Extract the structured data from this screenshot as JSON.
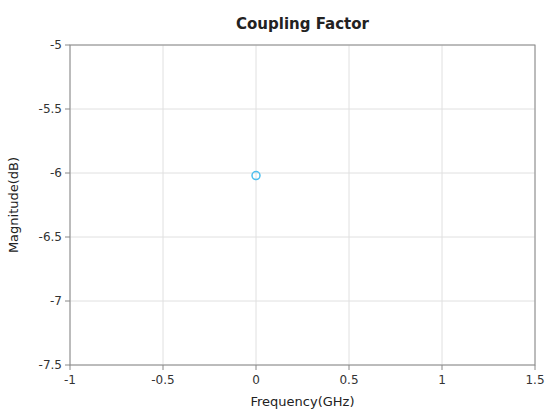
{
  "chart_data": {
    "type": "scatter",
    "title": "Coupling Factor",
    "xlabel": "Frequency(GHz)",
    "ylabel": "Magnitude(dB)",
    "x": [
      0.0
    ],
    "values": [
      -6.02
    ],
    "color": "#4DBEEE",
    "marker": "circle",
    "xlim": [
      -1,
      1.5
    ],
    "ylim": [
      -7.5,
      -5.0
    ],
    "xticks": [
      -1.0,
      -0.5,
      0.0,
      0.5,
      1.0,
      1.5
    ],
    "yticks": [
      -7.5,
      -7.0,
      -6.5,
      -6.0,
      -5.5,
      -5.0
    ],
    "grid": true
  }
}
